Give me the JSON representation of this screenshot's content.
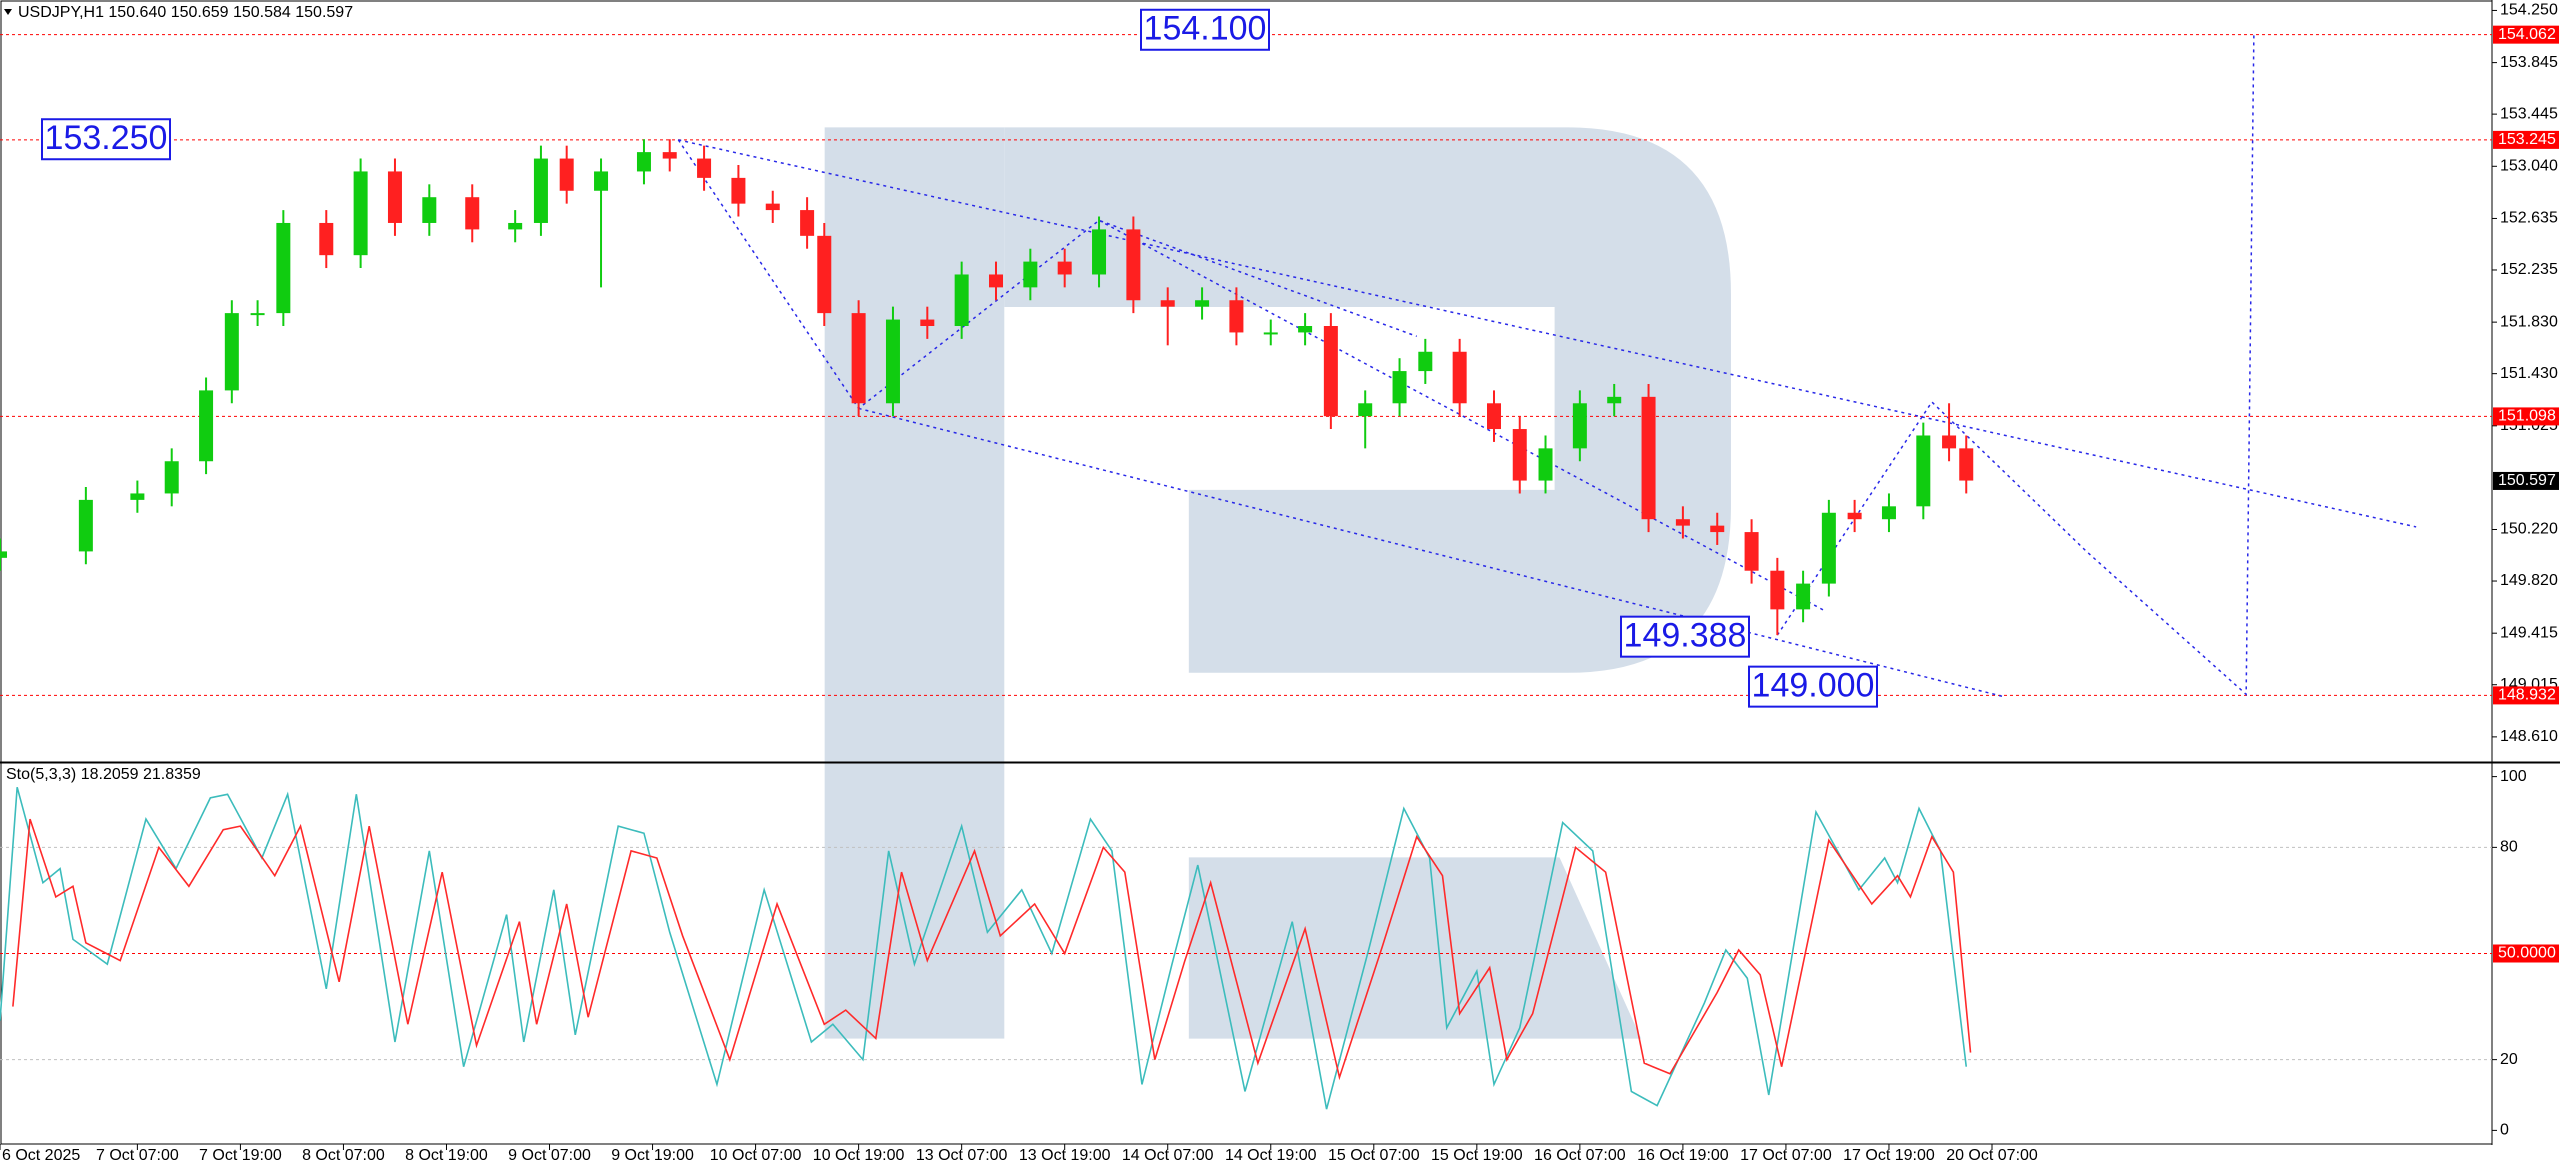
{
  "chart_data": [
    {
      "type": "candlestick",
      "title": "USDJPY,H1  150.640 150.659 150.584 150.597",
      "up_color": "#10cc10",
      "down_color": "#ff2020",
      "x": [
        0,
        10,
        16,
        20,
        24,
        27,
        30,
        33,
        38,
        42,
        46,
        50,
        55,
        60,
        63,
        66,
        70,
        75,
        78,
        82,
        86,
        90,
        94,
        96,
        100,
        104,
        108,
        112,
        116,
        120,
        124,
        128,
        132,
        136,
        140,
        144,
        148,
        152,
        155,
        159,
        163,
        166,
        170,
        174,
        177,
        180,
        184,
        188,
        192,
        196,
        200,
        204,
        207,
        210,
        213,
        216,
        220,
        224,
        227,
        229
      ],
      "open": [
        150.0,
        150.05,
        150.45,
        150.5,
        150.75,
        151.3,
        151.9,
        151.9,
        152.6,
        152.35,
        153.0,
        152.6,
        152.8,
        152.55,
        152.6,
        153.1,
        152.85,
        153.0,
        153.15,
        153.1,
        152.95,
        152.75,
        152.7,
        152.5,
        151.9,
        151.2,
        151.85,
        151.8,
        152.2,
        152.1,
        152.3,
        152.2,
        152.55,
        152.0,
        151.95,
        152.0,
        151.75,
        151.75,
        151.8,
        151.1,
        151.2,
        151.45,
        151.6,
        151.2,
        151.0,
        150.6,
        150.85,
        151.2,
        151.25,
        150.3,
        150.25,
        150.2,
        149.9,
        149.6,
        149.8,
        150.35,
        150.3,
        150.4,
        150.95,
        150.85
      ],
      "high": [
        150.15,
        150.55,
        150.6,
        150.85,
        151.4,
        152.0,
        152.0,
        152.7,
        152.7,
        153.1,
        153.1,
        152.9,
        152.9,
        152.7,
        153.2,
        153.2,
        153.1,
        153.25,
        153.25,
        153.2,
        153.05,
        152.85,
        152.8,
        152.6,
        152.0,
        151.95,
        151.95,
        152.3,
        152.3,
        152.4,
        152.4,
        152.65,
        152.65,
        152.1,
        152.1,
        152.1,
        151.85,
        151.9,
        151.9,
        151.3,
        151.55,
        151.7,
        151.7,
        151.3,
        151.1,
        150.95,
        151.3,
        151.35,
        151.35,
        150.4,
        150.35,
        150.3,
        150.0,
        149.9,
        150.45,
        150.45,
        150.5,
        151.05,
        151.2,
        150.95
      ],
      "low": [
        149.9,
        149.95,
        150.35,
        150.4,
        150.65,
        151.2,
        151.8,
        151.8,
        152.25,
        152.25,
        152.5,
        152.5,
        152.45,
        152.45,
        152.5,
        152.75,
        152.1,
        152.9,
        153.0,
        152.85,
        152.65,
        152.6,
        152.4,
        151.8,
        151.1,
        151.1,
        151.7,
        151.7,
        152.0,
        152.0,
        152.1,
        152.1,
        151.9,
        151.65,
        151.85,
        151.65,
        151.65,
        151.65,
        151.0,
        150.85,
        151.1,
        151.35,
        151.1,
        150.9,
        150.5,
        150.5,
        150.75,
        151.1,
        150.2,
        150.15,
        150.1,
        149.8,
        149.4,
        149.5,
        149.7,
        150.2,
        150.2,
        150.3,
        150.75,
        150.5
      ],
      "close": [
        150.05,
        150.45,
        150.5,
        150.75,
        151.3,
        151.9,
        151.9,
        152.6,
        152.35,
        153.0,
        152.6,
        152.8,
        152.55,
        152.6,
        153.1,
        152.85,
        153.0,
        153.15,
        153.1,
        152.95,
        152.75,
        152.7,
        152.5,
        151.9,
        151.2,
        151.85,
        151.8,
        152.2,
        152.1,
        152.3,
        152.2,
        152.55,
        152.0,
        151.95,
        152.0,
        151.75,
        151.75,
        151.8,
        151.1,
        151.2,
        151.45,
        151.6,
        151.2,
        151.0,
        150.6,
        150.85,
        151.2,
        151.25,
        150.3,
        150.25,
        150.2,
        149.9,
        149.6,
        149.8,
        150.35,
        150.3,
        150.4,
        150.95,
        150.85,
        150.6
      ],
      "xlim": [
        0,
        290
      ],
      "ylim": [
        148.446,
        154.3
      ],
      "yticks": [
        {
          "value": 154.25,
          "label": "154.250"
        },
        {
          "value": 153.845,
          "label": "153.845"
        },
        {
          "value": 153.445,
          "label": "153.445"
        },
        {
          "value": 153.04,
          "label": "153.040"
        },
        {
          "value": 152.635,
          "label": "152.635"
        },
        {
          "value": 152.235,
          "label": "152.235"
        },
        {
          "value": 151.83,
          "label": "151.830"
        },
        {
          "value": 151.43,
          "label": "151.430"
        },
        {
          "value": 151.025,
          "label": "151.025"
        },
        {
          "value": 150.22,
          "label": "150.220"
        },
        {
          "value": 149.82,
          "label": "149.820"
        },
        {
          "value": 149.415,
          "label": "149.415"
        },
        {
          "value": 149.015,
          "label": "149.015"
        },
        {
          "value": 148.61,
          "label": "148.610"
        }
      ],
      "levels": [
        {
          "value": 154.062,
          "label": "154.062",
          "color": "#ff0000"
        },
        {
          "value": 153.245,
          "label": "153.245",
          "color": "#ff0000"
        },
        {
          "value": 151.098,
          "label": "151.098",
          "color": "#ff0000"
        },
        {
          "value": 148.932,
          "label": "148.932",
          "color": "#ff0000"
        }
      ],
      "current_price": {
        "value": 150.597,
        "label": "150.597"
      },
      "annotations": [
        {
          "value": 154.1,
          "label": "154.100"
        },
        {
          "value": 153.25,
          "label": "153.250"
        },
        {
          "value": 149.388,
          "label": "149.388"
        },
        {
          "value": 149.0,
          "label": "149.000"
        }
      ],
      "trendline_color": "#2828e8",
      "trendlines": [
        {
          "x": [
            79,
            281.4
          ],
          "y": [
            153.245,
            150.24
          ]
        },
        {
          "x": [
            100,
            233.5
          ],
          "y": [
            151.16,
            148.92
          ]
        },
        {
          "x": [
            79,
            100,
            128,
            165
          ],
          "y": [
            153.245,
            151.16,
            152.62,
            151.72
          ]
        },
        {
          "x": [
            128,
            212.5
          ],
          "y": [
            152.62,
            149.59
          ]
        },
        {
          "x": [
            207,
            225,
            243,
            261.6,
            262.5
          ],
          "y": [
            149.4,
            151.21,
            150.05,
            148.94,
            154.07
          ]
        }
      ]
    },
    {
      "type": "line",
      "title": "Sto(5,3,3) 18.2059 21.8359",
      "series": [
        {
          "color": "#3cbcbc",
          "x": [
            0,
            2,
            5,
            7,
            8.5,
            12.5,
            17,
            20.5,
            24.5,
            26.5,
            30.5,
            33.5,
            38,
            41.5,
            46,
            50,
            54,
            59,
            61,
            64.5,
            67,
            72,
            75,
            78,
            83.5,
            89,
            94.5,
            97,
            100.5,
            103.5,
            106.5,
            112,
            115,
            119,
            122.5,
            127,
            129.5,
            133,
            136.5,
            139.5,
            145,
            150.5,
            154.5,
            159.5,
            163.5,
            166.5,
            168.5,
            172,
            174,
            177,
            182,
            185.5,
            190,
            193,
            198.5,
            201,
            203.5,
            206,
            211.5,
            216.5,
            219.5,
            221,
            223.5,
            226,
            229
          ],
          "values": [
            31,
            97,
            70,
            74,
            54,
            47,
            88,
            74,
            94,
            95,
            77,
            95,
            40,
            95,
            25,
            79,
            18,
            61,
            25,
            68,
            27,
            86,
            84,
            56,
            13,
            68,
            25,
            30,
            20,
            79,
            47,
            86,
            56,
            68,
            50,
            88,
            79,
            13,
            47,
            75,
            11,
            59,
            6,
            52,
            91,
            77,
            29,
            45,
            13,
            29,
            87,
            79,
            11,
            7,
            36,
            51,
            43,
            10,
            90,
            68,
            77,
            70,
            91,
            79,
            18
          ]
        },
        {
          "color": "#ff2a2a",
          "x": [
            1.5,
            3.5,
            6.5,
            8.5,
            10,
            14,
            18.5,
            22,
            26,
            28,
            32,
            35,
            39.5,
            43,
            47.5,
            51.5,
            55.5,
            60.5,
            62.5,
            66,
            68.5,
            73.5,
            76.5,
            79.5,
            85,
            90.5,
            96,
            98.5,
            102,
            105,
            108,
            113.5,
            116.5,
            120.5,
            124,
            128.5,
            131,
            134.5,
            138,
            141,
            146.5,
            152,
            156,
            161,
            165,
            168,
            170,
            173.5,
            175.5,
            178.5,
            183.5,
            187,
            191.5,
            194.5,
            200,
            202.5,
            205,
            207.5,
            213,
            218,
            221,
            222.5,
            225,
            227.5,
            229.5
          ],
          "values": [
            35,
            88,
            66,
            69,
            53,
            48,
            80,
            69,
            85,
            86,
            72,
            86,
            42,
            86,
            30,
            73,
            24,
            59,
            30,
            64,
            32,
            79,
            77,
            55,
            20,
            64,
            30,
            34,
            26,
            73,
            48,
            79,
            55,
            64,
            50,
            80,
            73,
            20,
            48,
            70,
            19,
            57,
            15,
            52,
            83,
            72,
            33,
            46,
            20,
            33,
            80,
            73,
            19,
            16,
            39,
            51,
            44,
            18,
            82,
            64,
            72,
            66,
            83,
            73,
            22
          ]
        }
      ],
      "xlim": [
        0,
        290
      ],
      "ylim": [
        -3,
        103
      ],
      "yticks": [
        0,
        20,
        80,
        100
      ],
      "levels": [
        {
          "value": 20,
          "color": "#c0c0c0"
        },
        {
          "value": 50,
          "color": "#ff0000",
          "label": "50.0000"
        },
        {
          "value": 80,
          "color": "#c0c0c0"
        }
      ],
      "xticks": [
        {
          "value": 0,
          "label": "6 Oct 2025"
        },
        {
          "value": 16,
          "label": "7 Oct 07:00"
        },
        {
          "value": 28,
          "label": "7 Oct 19:00"
        },
        {
          "value": 40,
          "label": "8 Oct 07:00"
        },
        {
          "value": 52,
          "label": "8 Oct 19:00"
        },
        {
          "value": 64,
          "label": "9 Oct 07:00"
        },
        {
          "value": 76,
          "label": "9 Oct 19:00"
        },
        {
          "value": 88,
          "label": "10 Oct 07:00"
        },
        {
          "value": 100,
          "label": "10 Oct 19:00"
        },
        {
          "value": 112,
          "label": "13 Oct 07:00"
        },
        {
          "value": 124,
          "label": "13 Oct 19:00"
        },
        {
          "value": 136,
          "label": "14 Oct 07:00"
        },
        {
          "value": 148,
          "label": "14 Oct 19:00"
        },
        {
          "value": 160,
          "label": "15 Oct 07:00"
        },
        {
          "value": 172,
          "label": "15 Oct 19:00"
        },
        {
          "value": 184,
          "label": "16 Oct 07:00"
        },
        {
          "value": 196,
          "label": "16 Oct 19:00"
        },
        {
          "value": 208,
          "label": "17 Oct 07:00"
        },
        {
          "value": 220,
          "label": "17 Oct 19:00"
        },
        {
          "value": 232,
          "label": "20 Oct 07:00"
        }
      ]
    }
  ]
}
